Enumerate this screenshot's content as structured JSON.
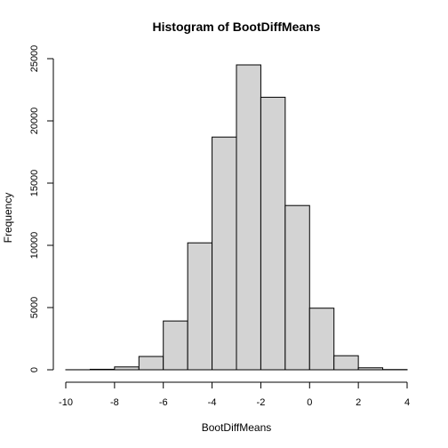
{
  "chart_data": {
    "type": "bar",
    "title": "Histogram of BootDiffMeans",
    "xlabel": "BootDiffMeans",
    "ylabel": "Frequency",
    "xlim": [
      -10,
      4
    ],
    "ylim": [
      0,
      25000
    ],
    "x_ticks": [
      -10,
      -8,
      -6,
      -4,
      -2,
      0,
      2,
      4
    ],
    "y_ticks": [
      0,
      5000,
      10000,
      15000,
      20000,
      25000
    ],
    "bins": [
      {
        "start": -10,
        "end": -9,
        "value": 5
      },
      {
        "start": -9,
        "end": -8,
        "value": 40
      },
      {
        "start": -8,
        "end": -7,
        "value": 230
      },
      {
        "start": -7,
        "end": -6,
        "value": 1070
      },
      {
        "start": -6,
        "end": -5,
        "value": 3920
      },
      {
        "start": -5,
        "end": -4,
        "value": 10200
      },
      {
        "start": -4,
        "end": -3,
        "value": 18700
      },
      {
        "start": -3,
        "end": -2,
        "value": 24500
      },
      {
        "start": -2,
        "end": -1,
        "value": 21900
      },
      {
        "start": -1,
        "end": 0,
        "value": 13200
      },
      {
        "start": 0,
        "end": 1,
        "value": 4950
      },
      {
        "start": 1,
        "end": 2,
        "value": 1130
      },
      {
        "start": 2,
        "end": 3,
        "value": 160
      },
      {
        "start": 3,
        "end": 4,
        "value": 20
      }
    ],
    "grid": false,
    "bar_fill": "#d3d3d3",
    "bar_stroke": "#000000"
  }
}
